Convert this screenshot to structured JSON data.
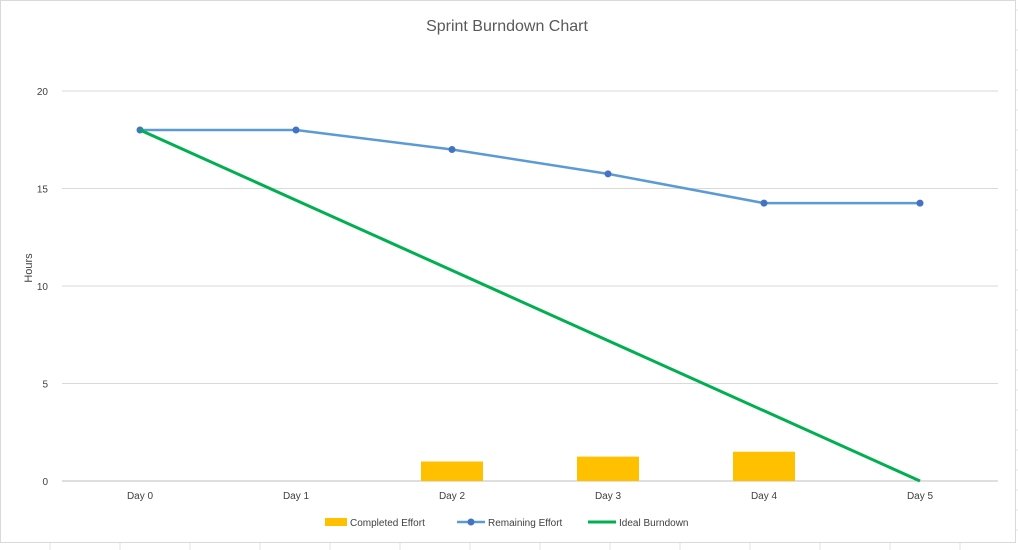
{
  "chart_data": {
    "type": "bar+line",
    "title": "Sprint Burndown Chart",
    "ylabel": "Hours",
    "xlabel": "",
    "ylim": [
      0,
      20
    ],
    "yticks": [
      0,
      5,
      10,
      15,
      20
    ],
    "categories": [
      "Day 0",
      "Day 1",
      "Day 2",
      "Day 3",
      "Day 4",
      "Day 5"
    ],
    "series": [
      {
        "name": "Completed Effort",
        "kind": "bar",
        "color": "#FFC000",
        "values": [
          0,
          0,
          1,
          1.25,
          1.5,
          0
        ]
      },
      {
        "name": "Remaining Effort",
        "kind": "line-markers",
        "color": "#5B9BD5",
        "values": [
          18,
          18,
          17,
          15.75,
          14.25,
          14.25
        ]
      },
      {
        "name": "Ideal Burndown",
        "kind": "line",
        "color": "#00B050",
        "values": [
          18,
          14.4,
          10.8,
          7.2,
          3.6,
          0
        ]
      }
    ],
    "grid": true,
    "legend": "bottom"
  }
}
